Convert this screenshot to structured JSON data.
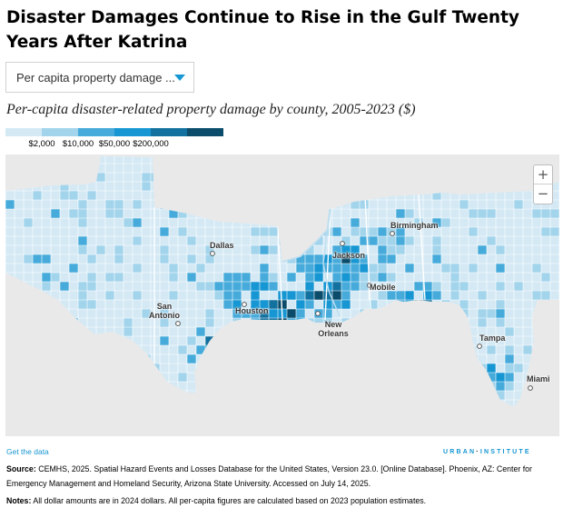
{
  "title": "Disaster Damages Continue to Rise in the Gulf Twenty Years After Katrina",
  "dropdown": {
    "selected": "Per capita property damage ...",
    "icon": "caret-down-icon"
  },
  "subtitle": "Per-capita disaster-related property damage by county, 2005-2023 ($)",
  "legend": {
    "colors": [
      "#cfe8f3",
      "#73bfe2",
      "#1696d2",
      "#0a4c6a"
    ],
    "bins": [
      {
        "color": "#d4e9f4"
      },
      {
        "color": "#a2d4ec"
      },
      {
        "color": "#46abdb"
      },
      {
        "color": "#1696d2"
      },
      {
        "color": "#12719e"
      },
      {
        "color": "#0a4c6a"
      }
    ],
    "ticks": [
      "$2,000",
      "$10,000",
      "$50,000",
      "$200,000"
    ]
  },
  "map": {
    "cities": [
      {
        "name": "Dallas",
        "id": "dallas"
      },
      {
        "name": "San Antonio",
        "id": "san-antonio"
      },
      {
        "name": "Houston",
        "id": "houston"
      },
      {
        "name": "Jackson",
        "id": "jackson"
      },
      {
        "name": "Birmingham",
        "id": "birmingham"
      },
      {
        "name": "Mobile",
        "id": "mobile"
      },
      {
        "name": "New Orleans",
        "id": "new-orleans"
      },
      {
        "name": "Tampa",
        "id": "tampa"
      },
      {
        "name": "Miami",
        "id": "miami"
      }
    ],
    "zoom": {
      "in": "+",
      "out": "−"
    }
  },
  "footer": {
    "get_data": "Get the data",
    "brand": "URBAN",
    "brand_sep": "·",
    "brand2": "INSTITUTE",
    "source_label": "Source:",
    "source_text": "CEMHS, 2025. Spatial Hazard Events and Losses Database for the United States, Version 23.0. [Online Database]. Phoenix, AZ: Center for Emergency Management and Homeland Security, Arizona State University. Accessed on July 14, 2025.",
    "notes_label": "Notes:",
    "notes_text": "All dollar amounts are in 2024 dollars. All per-capita figures are calculated based on 2023 population estimates."
  }
}
